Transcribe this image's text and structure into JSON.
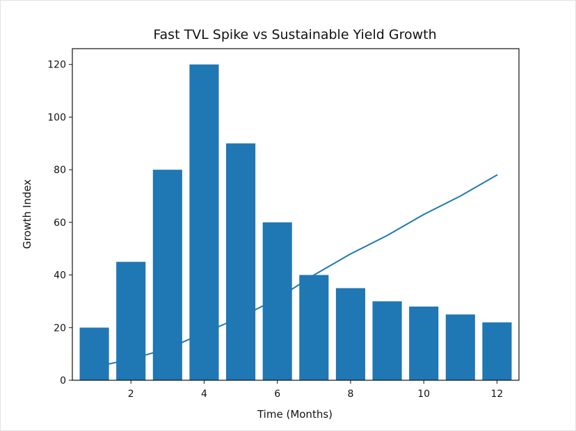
{
  "chart_data": {
    "type": "bar",
    "title": "Fast TVL Spike vs Sustainable Yield Growth",
    "xlabel": "Time (Months)",
    "ylabel": "Growth Index",
    "xlim": [
      0.4,
      12.6
    ],
    "ylim": [
      0,
      126
    ],
    "x_ticks": [
      2,
      4,
      6,
      8,
      10,
      12
    ],
    "y_ticks": [
      0,
      20,
      40,
      60,
      80,
      100,
      120
    ],
    "grid": false,
    "bar_color": "#1f77b4",
    "line_color": "#1f77b4",
    "series": [
      {
        "type": "bar",
        "x": [
          1,
          2,
          3,
          4,
          5,
          6,
          7,
          8,
          9,
          10,
          11,
          12
        ],
        "values": [
          20,
          45,
          80,
          120,
          90,
          60,
          40,
          35,
          30,
          28,
          25,
          22
        ]
      },
      {
        "type": "line",
        "x": [
          1,
          2,
          3,
          4,
          5,
          6,
          7,
          8,
          9,
          10,
          11,
          12
        ],
        "values": [
          5,
          8,
          12,
          18,
          24,
          31,
          40,
          48,
          55,
          63,
          70,
          78
        ]
      }
    ]
  }
}
